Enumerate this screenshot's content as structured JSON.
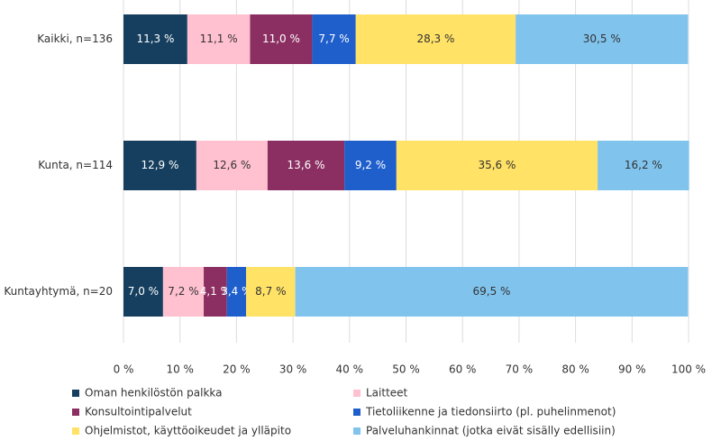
{
  "chart_data": {
    "type": "stacked-bar-horizontal",
    "categories": [
      "Kaikki, n=136",
      "Kunta, n=114",
      "Kuntayhtymä, n=20"
    ],
    "series": [
      {
        "name": "Oman henkilöstön palkka",
        "color": "#163f5f",
        "values": [
          11.3,
          12.9,
          7.0
        ],
        "value_labels": [
          "11,3 %",
          "12,9 %",
          "7,0 %"
        ]
      },
      {
        "name": "Laitteet",
        "color": "#ffc0d0",
        "values": [
          11.1,
          12.6,
          7.2
        ],
        "value_labels": [
          "11,1 %",
          "12,6 %",
          "7,2 %"
        ]
      },
      {
        "name": "Konsultointipalvelut",
        "color": "#8b2f62",
        "values": [
          11.0,
          13.6,
          4.1
        ],
        "value_labels": [
          "11,0 %",
          "13,6 %",
          "4,1 %"
        ]
      },
      {
        "name": "Tietoliikenne ja tiedonsiirto (pl. puhelinmenot)",
        "color": "#1f5fcc",
        "values": [
          7.7,
          9.2,
          3.4
        ],
        "value_labels": [
          "7,7 %",
          "9,2 %",
          "3,4 %"
        ]
      },
      {
        "name": "Ohjelmistot, käyttöoikeudet ja ylläpito",
        "color": "#ffe266",
        "values": [
          28.3,
          35.6,
          8.7
        ],
        "value_labels": [
          "28,3 %",
          "35,6 %",
          "8,7 %"
        ]
      },
      {
        "name": "Palveluhankinnat (jotka eivät sisälly edellisiin)",
        "color": "#80c4ee",
        "values": [
          30.5,
          16.2,
          69.5
        ],
        "value_labels": [
          "30,5 %",
          "16,2 %",
          "69,5 %"
        ]
      }
    ],
    "xlim": [
      0,
      100
    ],
    "xticks": [
      {
        "value": 0,
        "label": "0 %"
      },
      {
        "value": 10,
        "label": "10 %"
      },
      {
        "value": 20,
        "label": "20 %"
      },
      {
        "value": 30,
        "label": "30 %"
      },
      {
        "value": 40,
        "label": "40 %"
      },
      {
        "value": 50,
        "label": "50 %"
      },
      {
        "value": 60,
        "label": "60 %"
      },
      {
        "value": 70,
        "label": "70 %"
      },
      {
        "value": 80,
        "label": "80 %"
      },
      {
        "value": 90,
        "label": "90 %"
      },
      {
        "value": 100,
        "label": "100 %"
      }
    ],
    "grid": true
  }
}
